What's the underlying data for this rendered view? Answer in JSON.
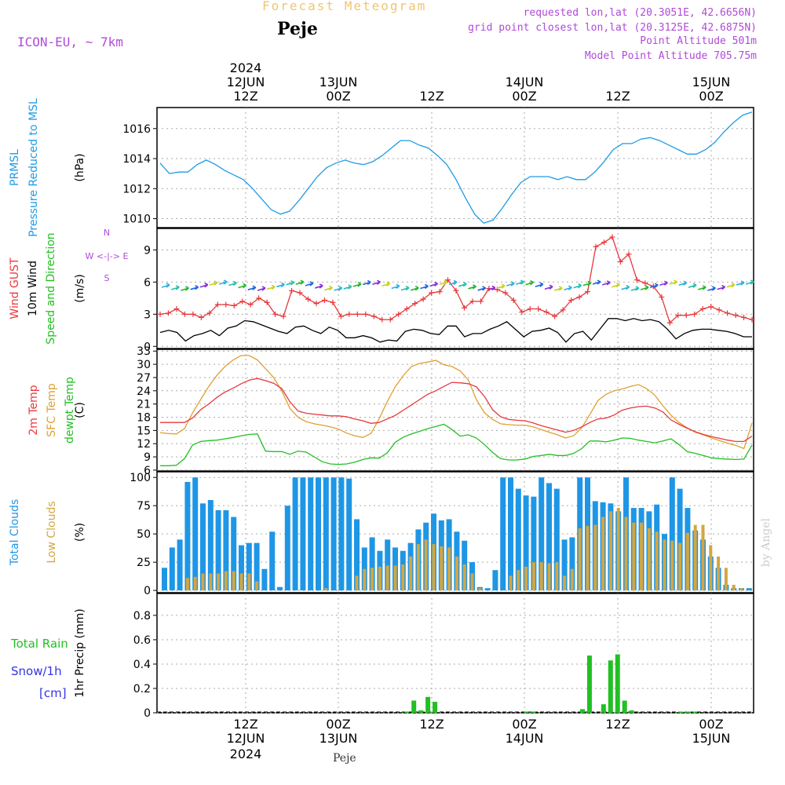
{
  "header": {
    "title": "Forecast Meteogram",
    "station": "Peje",
    "model": "ICON-EU, ~ 7km",
    "requested": "requested lon,lat (20.3051E, 42.6656N)",
    "gridpoint": "grid point closest lon,lat (20.3125E, 42.6875N)",
    "point_alt": "Point Altitude 501m",
    "model_alt": "Model Point Altitude 705.75m",
    "watermark": "by Angel",
    "footer_station": "Peje"
  },
  "colors": {
    "pressure": "#1e9be6",
    "gust": "#e8383d",
    "wind": "#000000",
    "temp": "#e8383d",
    "sfc": "#e0a030",
    "dewpt": "#22c022",
    "total_clouds": "#1e96e6",
    "low_clouds": "#d4a640",
    "rain": "#22c022",
    "snow": "#3333e6",
    "labels_purple": "#b04ad8"
  },
  "chart_data": [
    {
      "panel": "pressure",
      "type": "line",
      "x_hours": [
        0,
        1,
        2,
        3,
        4,
        5,
        6,
        7,
        8,
        9,
        10,
        11,
        12,
        13,
        14,
        15,
        16,
        17,
        18,
        19,
        20,
        21,
        22,
        23,
        24,
        25,
        26,
        27,
        28,
        29,
        30,
        31,
        32,
        33,
        34,
        35,
        36,
        37,
        38,
        39,
        40,
        41,
        42,
        43,
        44,
        45,
        46,
        47,
        48,
        49,
        50,
        51,
        52,
        53,
        54,
        55,
        56,
        57,
        58,
        59,
        60,
        61,
        62,
        63,
        64
      ],
      "series": [
        {
          "values": [
            1013.7,
            1013.0,
            1013.1,
            1013.1,
            1013.6,
            1013.9,
            1013.6,
            1013.2,
            1012.9,
            1012.6,
            1012.0,
            1011.3,
            1010.6,
            1010.3,
            1010.5,
            1011.2,
            1012.0,
            1012.8,
            1013.4,
            1013.7,
            1013.9,
            1013.7,
            1013.6,
            1013.8,
            1014.2,
            1014.7,
            1015.2,
            1015.2,
            1014.9,
            1014.7,
            1014.2,
            1013.6,
            1012.6,
            1011.4,
            1010.3,
            1009.7,
            1009.9,
            1010.7,
            1011.6,
            1012.4,
            1012.8,
            1012.8,
            1012.8,
            1012.6,
            1012.8,
            1012.6,
            1012.6,
            1013.1,
            1013.8,
            1014.6,
            1015.0,
            1015.0,
            1015.3,
            1015.4,
            1015.2,
            1014.9,
            1014.6,
            1014.3,
            1014.3,
            1014.6,
            1015.1,
            1015.8,
            1016.4,
            1016.9,
            1017.1
          ]
        }
      ],
      "ylabel": "(hPa)",
      "left_labels": [
        "PRMSL",
        "Pressure Reduced to MSL"
      ],
      "yticks": [
        1010,
        1012,
        1014,
        1016
      ],
      "ylim": [
        1009.4,
        1017.4
      ]
    },
    {
      "panel": "wind",
      "type": "line",
      "series": [
        {
          "values": [
            3.0,
            3.1,
            3.5,
            3.0,
            3.0,
            2.7,
            3.1,
            3.9,
            3.9,
            3.8,
            4.2,
            3.9,
            4.5,
            4.1,
            3.0,
            2.8,
            5.2,
            5.0,
            4.4,
            4.0,
            4.3,
            4.1,
            2.8,
            3.0,
            3.0,
            3.0,
            2.8,
            2.5,
            2.5,
            3.0,
            3.5,
            4.0,
            4.4,
            5.0,
            5.1,
            6.2,
            5.2,
            3.6,
            4.2,
            4.2,
            5.4,
            5.3,
            5.0,
            4.3,
            3.2,
            3.5,
            3.5,
            3.2,
            2.8,
            3.4,
            4.3,
            4.6,
            5.1,
            9.3,
            9.7,
            10.2,
            7.9,
            8.6,
            6.2,
            5.9,
            5.6,
            4.6,
            2.2,
            2.9,
            2.9,
            3.0,
            3.5,
            3.7,
            3.4,
            3.1,
            2.9,
            2.7,
            2.5
          ]
        },
        {
          "values": [
            1.3,
            1.5,
            1.3,
            0.5,
            1.0,
            1.2,
            1.5,
            1.0,
            1.7,
            1.9,
            2.4,
            2.3,
            2.0,
            1.7,
            1.4,
            1.2,
            1.8,
            1.9,
            1.5,
            1.2,
            1.8,
            1.5,
            0.8,
            0.8,
            1.0,
            0.8,
            0.4,
            0.6,
            0.5,
            1.4,
            1.6,
            1.5,
            1.2,
            1.1,
            1.9,
            1.9,
            0.9,
            1.2,
            1.2,
            1.6,
            1.9,
            2.3,
            1.6,
            0.9,
            1.4,
            1.5,
            1.7,
            1.3,
            0.4,
            1.2,
            1.4,
            0.6,
            1.6,
            2.6,
            2.6,
            2.4,
            2.6,
            2.4,
            2.5,
            2.3,
            1.6,
            0.7,
            1.2,
            1.5,
            1.6,
            1.6,
            1.5,
            1.4,
            1.2,
            0.9,
            0.9
          ]
        }
      ],
      "ylabel": "(m/s)",
      "left_labels": [
        "Wind GUST",
        "10m Wind",
        "Speed and Direction"
      ],
      "compass": [
        "N",
        "W <-|-> E",
        "S"
      ],
      "yticks": [
        0,
        3,
        6,
        9
      ],
      "ylim": [
        -0.2,
        11.0
      ]
    },
    {
      "panel": "temperature",
      "type": "line",
      "series": [
        {
          "values": [
            16.8,
            16.8,
            16.8,
            16.8,
            17.8,
            19.7,
            21.0,
            22.5,
            23.7,
            24.6,
            25.6,
            26.4,
            26.8,
            26.3,
            25.7,
            24.5,
            21.5,
            19.4,
            18.9,
            18.7,
            18.5,
            18.3,
            18.3,
            18.1,
            17.6,
            17.2,
            16.6,
            16.8,
            17.6,
            18.4,
            19.6,
            20.8,
            22.0,
            23.2,
            24.0,
            25.0,
            25.9,
            25.8,
            25.6,
            24.9,
            22.7,
            19.7,
            18.1,
            17.5,
            17.3,
            17.2,
            16.7,
            16.1,
            15.6,
            15.1,
            14.6,
            15.0,
            15.8,
            16.8,
            17.6,
            17.8,
            18.5,
            19.6,
            20.1,
            20.4,
            20.5,
            20.1,
            19.2,
            17.4,
            16.4,
            15.5,
            14.7,
            14.1,
            13.6,
            13.2,
            12.8,
            12.5,
            12.5,
            13.7
          ]
        },
        {
          "values": [
            14.5,
            14.3,
            14.2,
            15.4,
            19.0,
            22.0,
            25.0,
            27.5,
            29.5,
            31.0,
            32.0,
            32.0,
            31.0,
            29.0,
            27.0,
            24.0,
            20.0,
            18.0,
            17.0,
            16.5,
            16.2,
            15.8,
            15.3,
            14.4,
            13.8,
            13.4,
            14.3,
            17.6,
            21.5,
            24.9,
            27.5,
            29.5,
            30.2,
            30.5,
            30.9,
            29.9,
            29.5,
            28.5,
            26.5,
            22.0,
            19.0,
            17.5,
            16.5,
            16.3,
            16.2,
            16.2,
            15.8,
            15.2,
            14.6,
            14.0,
            13.3,
            13.8,
            15.6,
            18.6,
            21.8,
            23.2,
            24.0,
            24.4,
            25.0,
            25.4,
            24.5,
            23.0,
            20.6,
            18.5,
            16.8,
            15.6,
            14.6,
            14.0,
            13.3,
            12.7,
            12.1,
            11.6,
            10.9,
            16.7
          ]
        },
        {
          "values": [
            7.0,
            7.0,
            7.1,
            8.6,
            11.7,
            12.5,
            12.7,
            12.8,
            13.1,
            13.4,
            13.8,
            14.1,
            14.2,
            10.3,
            10.2,
            10.2,
            9.6,
            10.3,
            10.1,
            9.0,
            7.9,
            7.4,
            7.3,
            7.4,
            7.8,
            8.4,
            8.8,
            8.7,
            9.9,
            12.3,
            13.5,
            14.2,
            14.8,
            15.4,
            15.9,
            16.4,
            15.2,
            13.7,
            14.0,
            13.3,
            11.8,
            10.0,
            8.6,
            8.3,
            8.3,
            8.5,
            9.1,
            9.3,
            9.6,
            9.3,
            9.3,
            9.8,
            10.9,
            12.6,
            12.6,
            12.4,
            12.8,
            13.3,
            13.2,
            12.8,
            12.5,
            12.2,
            12.6,
            13.1,
            11.8,
            10.2,
            9.8,
            9.3,
            8.8,
            8.6,
            8.5,
            8.4,
            8.5,
            11.7
          ]
        }
      ],
      "ylabel": "(C)",
      "left_labels": [
        "2m Temp",
        "SFC Temp",
        "dewpt Temp"
      ],
      "yticks": [
        6,
        9,
        12,
        15,
        18,
        21,
        24,
        27,
        30,
        33
      ],
      "ylim": [
        5.8,
        33.4
      ]
    },
    {
      "panel": "clouds",
      "type": "bar",
      "series": [
        {
          "values": [
            20,
            38,
            45,
            96,
            100,
            77,
            80,
            71,
            71,
            65,
            40,
            42,
            42,
            19,
            52,
            3,
            75,
            100,
            100,
            100,
            100,
            100,
            100,
            100,
            99,
            63,
            38,
            47,
            35,
            45,
            38,
            35,
            42,
            54,
            60,
            68,
            62,
            63,
            52,
            44,
            25,
            3,
            2,
            18,
            100,
            100,
            90,
            84,
            83,
            100,
            95,
            90,
            45,
            47,
            100,
            100,
            79,
            78,
            77,
            70,
            100,
            73,
            73,
            70,
            76,
            50,
            100,
            90,
            73,
            53,
            45,
            30,
            20,
            5,
            2,
            2,
            2,
            0
          ]
        },
        {
          "values": [
            0,
            0,
            0,
            11,
            12,
            15,
            15,
            15,
            17,
            17,
            15,
            15,
            8,
            0,
            0,
            0,
            0,
            0,
            0,
            0,
            0,
            2,
            0,
            0,
            0,
            13,
            19,
            20,
            21,
            22,
            22,
            23,
            30,
            41,
            45,
            41,
            39,
            38,
            30,
            23,
            15,
            2,
            0,
            0,
            0,
            13,
            18,
            21,
            25,
            25,
            24,
            25,
            13,
            19,
            55,
            57,
            58,
            65,
            70,
            73,
            65,
            60,
            60,
            55,
            52,
            45,
            44,
            42,
            51,
            58,
            58,
            40,
            30,
            20,
            5,
            2,
            0,
            0
          ]
        }
      ],
      "ylabel": "(%)",
      "left_labels": [
        "Total Clouds",
        "Low Clouds"
      ],
      "yticks": [
        0,
        25,
        50,
        75,
        100
      ],
      "ylim": [
        -2,
        105
      ]
    },
    {
      "panel": "precip",
      "type": "bar",
      "series": [
        {
          "values": [
            0,
            0,
            0,
            0,
            0,
            0,
            0,
            0,
            0,
            0,
            0,
            0,
            0,
            0,
            0,
            0,
            0,
            0,
            0,
            0,
            0,
            0,
            0,
            0,
            0,
            0,
            0,
            0,
            0,
            0,
            0,
            0,
            0,
            0,
            0,
            0.01,
            0.1,
            0.02,
            0.13,
            0.09,
            0,
            0,
            0,
            0,
            0,
            0,
            0,
            0,
            0,
            0,
            0,
            0,
            0.01,
            0.01,
            0,
            0,
            0,
            0,
            0,
            0,
            0.03,
            0.47,
            0,
            0.07,
            0.43,
            0.48,
            0.1,
            0.02,
            0,
            0,
            0,
            0,
            0,
            0,
            0.01,
            0.01,
            0.01,
            0,
            0,
            0,
            0,
            0,
            0,
            0,
            0,
            0
          ]
        }
      ],
      "ylabel": "1hr Precip (mm)",
      "left_labels": [
        "Total  Rain",
        "Snow/1h",
        "[cm]"
      ],
      "yticks": [
        0,
        0.2,
        0.4,
        0.6,
        0.8
      ],
      "yticklabels": [
        "0",
        "0.2",
        "0.4",
        "0.6",
        "0.8"
      ],
      "ylim": [
        0,
        0.98
      ]
    }
  ],
  "time_axis": {
    "top": [
      {
        "l1": "2024",
        "l2": "12JUN",
        "l3": "12Z"
      },
      {
        "l1": "",
        "l2": "13JUN",
        "l3": "00Z"
      },
      {
        "l1": "",
        "l2": "",
        "l3": "12Z"
      },
      {
        "l1": "",
        "l2": "14JUN",
        "l3": "00Z"
      },
      {
        "l1": "",
        "l2": "",
        "l3": "12Z"
      },
      {
        "l1": "",
        "l2": "15JUN",
        "l3": "00Z"
      }
    ],
    "bottom": [
      {
        "l1": "12Z",
        "l2": "12JUN",
        "l3": "2024"
      },
      {
        "l1": "00Z",
        "l2": "13JUN",
        "l3": ""
      },
      {
        "l1": "12Z",
        "l2": "",
        "l3": ""
      },
      {
        "l1": "00Z",
        "l2": "14JUN",
        "l3": ""
      },
      {
        "l1": "12Z",
        "l2": "",
        "l3": ""
      },
      {
        "l1": "00Z",
        "l2": "15JUN",
        "l3": ""
      }
    ]
  }
}
